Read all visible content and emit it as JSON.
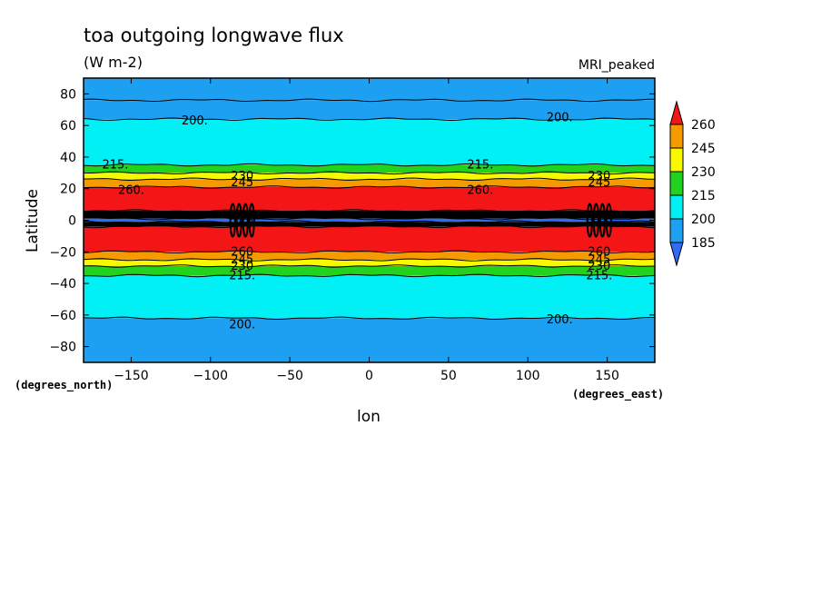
{
  "chart_data": {
    "type": "heatmap",
    "title": "toa outgoing longwave flux",
    "units_label": "(W m-2)",
    "dataset_label": "MRI_peaked",
    "xlabel": "lon",
    "ylabel": "Latitude",
    "x_unit_label": "(degrees_east)",
    "y_unit_label": "(degrees_north)",
    "xlim": [
      -180,
      180
    ],
    "ylim": [
      -90,
      90
    ],
    "x_ticks": [
      "-150",
      "-100",
      "-50",
      "0",
      "50",
      "100",
      "150"
    ],
    "y_ticks": [
      "80",
      "60",
      "40",
      "20",
      "0",
      "-20",
      "-40",
      "-60",
      "-80"
    ],
    "levels": [
      185,
      200,
      215,
      230,
      245,
      260
    ],
    "colorbar_labels": [
      "260",
      "245",
      "230",
      "215",
      "200",
      "185"
    ],
    "colors": {
      "lt185": "#2f6cf6",
      "185_200": "#1ea0f2",
      "200_215": "#00f0f5",
      "215_230": "#22d21e",
      "230_245": "#f8f800",
      "245_260": "#f59b00",
      "gt260": "#f41616",
      "convective_black": "#000000"
    },
    "zonal_bands": [
      {
        "lat_min": 76,
        "lat_max": 90,
        "flux_class": "185-200"
      },
      {
        "lat_min": 64,
        "lat_max": 76,
        "flux_class": "185-200"
      },
      {
        "lat_min": 35,
        "lat_max": 64,
        "flux_class": "200-215"
      },
      {
        "lat_min": 30,
        "lat_max": 35,
        "flux_class": "215-230"
      },
      {
        "lat_min": 26,
        "lat_max": 30,
        "flux_class": "230-245"
      },
      {
        "lat_min": 21,
        "lat_max": 26,
        "flux_class": "245-260"
      },
      {
        "lat_min": 6,
        "lat_max": 21,
        "flux_class": ">260"
      },
      {
        "lat_min": 1,
        "lat_max": 6,
        "flux_class": "contour-dense (black)"
      },
      {
        "lat_min": -1,
        "lat_max": 1,
        "flux_class": "<185"
      },
      {
        "lat_min": -4,
        "lat_max": -1,
        "flux_class": "contour-dense (black)"
      },
      {
        "lat_min": -20,
        "lat_max": -4,
        "flux_class": ">260"
      },
      {
        "lat_min": -25,
        "lat_max": -20,
        "flux_class": "245-260"
      },
      {
        "lat_min": -29,
        "lat_max": -25,
        "flux_class": "230-245"
      },
      {
        "lat_min": -35,
        "lat_max": -29,
        "flux_class": "215-230"
      },
      {
        "lat_min": -62,
        "lat_max": -35,
        "flux_class": "200-215"
      },
      {
        "lat_min": -90,
        "lat_max": -62,
        "flux_class": "185-200"
      }
    ],
    "contour_labels": [
      {
        "text": "200.",
        "lon": -110,
        "lat": 63
      },
      {
        "text": "200.",
        "lon": 120,
        "lat": 65
      },
      {
        "text": "215.",
        "lon": -160,
        "lat": 35
      },
      {
        "text": "215.",
        "lon": 70,
        "lat": 35
      },
      {
        "text": "230",
        "lon": -80,
        "lat": 28
      },
      {
        "text": "245",
        "lon": -80,
        "lat": 24
      },
      {
        "text": "230",
        "lon": 145,
        "lat": 28
      },
      {
        "text": "245",
        "lon": 145,
        "lat": 24
      },
      {
        "text": "260.",
        "lon": -150,
        "lat": 19
      },
      {
        "text": "260.",
        "lon": 70,
        "lat": 19
      },
      {
        "text": "260",
        "lon": -80,
        "lat": -2
      },
      {
        "text": "260",
        "lon": -80,
        "lat": -20
      },
      {
        "text": "245",
        "lon": -80,
        "lat": -25
      },
      {
        "text": "230",
        "lon": -80,
        "lat": -29
      },
      {
        "text": "215.",
        "lon": -80,
        "lat": -35
      },
      {
        "text": "260",
        "lon": 145,
        "lat": -20
      },
      {
        "text": "245",
        "lon": 145,
        "lat": -25
      },
      {
        "text": "230",
        "lon": 145,
        "lat": -29
      },
      {
        "text": "215.",
        "lon": 145,
        "lat": -35
      },
      {
        "text": "200.",
        "lon": -80,
        "lat": -66
      },
      {
        "text": "200.",
        "lon": 120,
        "lat": -63
      }
    ]
  }
}
